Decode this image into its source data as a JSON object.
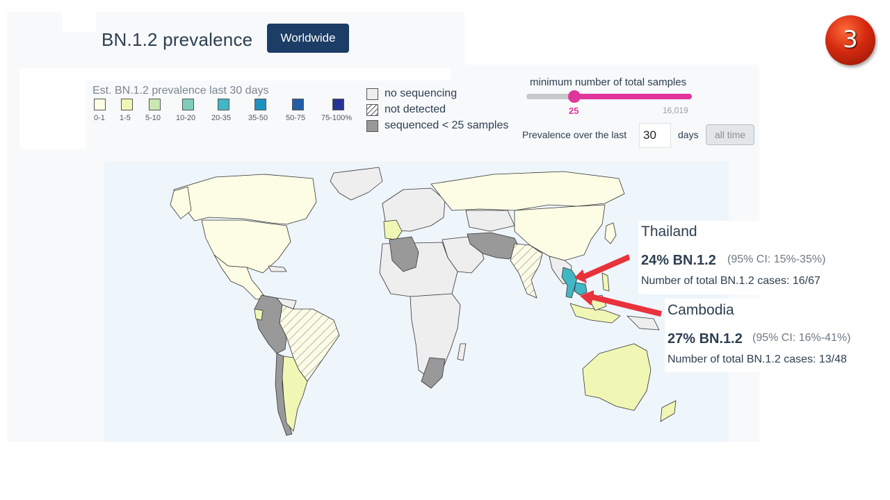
{
  "header": {
    "title": "BN.1.2 prevalence",
    "region_button": "Worldwide"
  },
  "legend": {
    "title": "Est. BN.1.2 prevalence last 30 days",
    "bins": [
      {
        "label": "0-1",
        "color": "#fcfde4"
      },
      {
        "label": "1-5",
        "color": "#f0f7b4"
      },
      {
        "label": "5-10",
        "color": "#cbe7b3"
      },
      {
        "label": "10-20",
        "color": "#7fcdbb"
      },
      {
        "label": "20-35",
        "color": "#41b6c4"
      },
      {
        "label": "35-50",
        "color": "#1d91c0"
      },
      {
        "label": "50-75",
        "color": "#225ea8"
      },
      {
        "label": "75-100%",
        "color": "#253494"
      }
    ],
    "status": [
      {
        "label": "no sequencing",
        "fill": "#eeeeee"
      },
      {
        "label": "not detected",
        "fill": "hatch"
      },
      {
        "label": "sequenced < 25 samples",
        "fill": "#999999"
      }
    ]
  },
  "filters": {
    "slider_title": "minimum number of total samples",
    "slider_min_value": "25",
    "slider_max_value": "16,019",
    "slider_fraction": 0.3,
    "prevalence_label": "Prevalence over the last",
    "days_value": "30",
    "days_label": "days",
    "all_time_button": "all time"
  },
  "tooltips": [
    {
      "country": "Thailand",
      "prevalence": "24% BN.1.2",
      "ci": "(95% CI: 15%-35%)",
      "cases": "Number of total BN.1.2 cases: 16/67"
    },
    {
      "country": "Cambodia",
      "prevalence": "27% BN.1.2",
      "ci": "(95% CI: 16%-41%)",
      "cases": "Number of total BN.1.2 cases: 13/48"
    }
  ],
  "slide_number": "3",
  "colors": {
    "accent": "#e0359b",
    "button": "#1b3d66",
    "arrow": "#e8323c",
    "highlight": "#41b6c4"
  }
}
